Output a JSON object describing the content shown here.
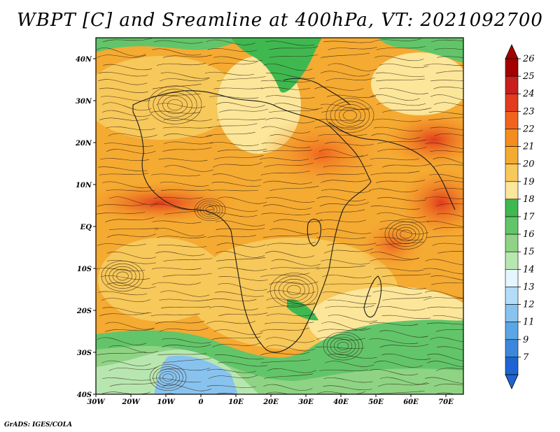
{
  "title": "WBPT [C] and Sreamline at 400hPa, VT: 2021092700",
  "credit": "GrADS: IGES/COLA",
  "lon_ticks": [
    "30W",
    "20W",
    "10W",
    "0",
    "10E",
    "20E",
    "30E",
    "40E",
    "50E",
    "60E",
    "70E"
  ],
  "lat_ticks": [
    "40N",
    "30N",
    "20N",
    "10N",
    "EQ",
    "10S",
    "20S",
    "30S",
    "40S"
  ],
  "colorbar": {
    "levels": [
      "26",
      "25",
      "24",
      "23",
      "22",
      "21",
      "20",
      "19",
      "18",
      "17",
      "16",
      "15",
      "14",
      "13",
      "12",
      "11",
      "9",
      "7"
    ],
    "colors": [
      "#a50000",
      "#c81e1e",
      "#e23b1e",
      "#f0641e",
      "#f58c1e",
      "#f5aa32",
      "#f7c85a",
      "#fbe69a",
      "#40b850",
      "#62c56a",
      "#8ed484",
      "#b8e6b0",
      "#e4f6ff",
      "#b4dcf8",
      "#88c3ef",
      "#5aa6e6",
      "#3c87dc",
      "#1e64d2"
    ]
  },
  "chart_data": {
    "type": "heatmap",
    "variable": "WBPT [C]",
    "level": "400hPa",
    "valid_time": "2021092700",
    "overlay": "streamlines",
    "lon_range": [
      -30,
      75
    ],
    "lat_range": [
      -40,
      45
    ],
    "value_range": [
      7,
      26
    ]
  }
}
